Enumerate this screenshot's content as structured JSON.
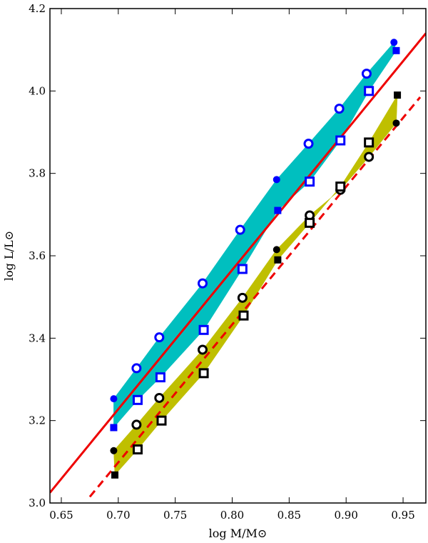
{
  "chart_data": {
    "type": "scatter",
    "xlabel": "log M/M⊙",
    "ylabel": "log L/L⊙",
    "xlim": [
      0.64,
      0.97
    ],
    "ylim": [
      3.0,
      4.2
    ],
    "xticks": [
      "0.65",
      "0.70",
      "0.75",
      "0.80",
      "0.85",
      "0.90",
      "0.95"
    ],
    "yticks": [
      "3.0",
      "3.2",
      "3.4",
      "3.6",
      "3.8",
      "4.0",
      "4.2"
    ],
    "grid": false,
    "colors": {
      "blue": "#0000ff",
      "black": "#000000",
      "cyan_band": "#00bfbf",
      "yellow_band": "#bfbf00",
      "red": "#ee0000"
    },
    "bands": [
      {
        "color": "cyan",
        "upper": [
          [
            0.696,
            3.253
          ],
          [
            0.716,
            3.327
          ],
          [
            0.736,
            3.402
          ],
          [
            0.774,
            3.533
          ],
          [
            0.807,
            3.663
          ],
          [
            0.839,
            3.785
          ],
          [
            0.867,
            3.872
          ],
          [
            0.894,
            3.957
          ],
          [
            0.918,
            4.042
          ],
          [
            0.942,
            4.118
          ]
        ],
        "lower": [
          [
            0.696,
            3.183
          ],
          [
            0.717,
            3.25
          ],
          [
            0.737,
            3.305
          ],
          [
            0.775,
            3.42
          ],
          [
            0.809,
            3.568
          ],
          [
            0.84,
            3.71
          ],
          [
            0.868,
            3.78
          ],
          [
            0.895,
            3.88
          ],
          [
            0.92,
            4.0
          ],
          [
            0.944,
            4.098
          ]
        ]
      },
      {
        "color": "yellow",
        "upper": [
          [
            0.696,
            3.127
          ],
          [
            0.716,
            3.19
          ],
          [
            0.736,
            3.255
          ],
          [
            0.774,
            3.372
          ],
          [
            0.809,
            3.498
          ],
          [
            0.839,
            3.615
          ],
          [
            0.868,
            3.698
          ],
          [
            0.895,
            3.76
          ],
          [
            0.92,
            3.84
          ],
          [
            0.944,
            3.922
          ]
        ],
        "lower": [
          [
            0.697,
            3.068
          ],
          [
            0.717,
            3.13
          ],
          [
            0.738,
            3.2
          ],
          [
            0.775,
            3.315
          ],
          [
            0.81,
            3.455
          ],
          [
            0.84,
            3.59
          ],
          [
            0.868,
            3.68
          ],
          [
            0.895,
            3.768
          ],
          [
            0.92,
            3.875
          ],
          [
            0.945,
            3.99
          ]
        ]
      }
    ],
    "series": [
      {
        "marker": "filled-circle",
        "color": "blue",
        "points": [
          [
            0.696,
            3.253
          ],
          [
            0.839,
            3.785
          ],
          [
            0.942,
            4.118
          ]
        ]
      },
      {
        "marker": "open-circle",
        "color": "blue",
        "points": [
          [
            0.716,
            3.327
          ],
          [
            0.736,
            3.402
          ],
          [
            0.774,
            3.533
          ],
          [
            0.807,
            3.663
          ],
          [
            0.867,
            3.872
          ],
          [
            0.894,
            3.957
          ],
          [
            0.918,
            4.042
          ]
        ]
      },
      {
        "marker": "filled-square",
        "color": "blue",
        "points": [
          [
            0.696,
            3.183
          ],
          [
            0.84,
            3.71
          ],
          [
            0.944,
            4.098
          ]
        ]
      },
      {
        "marker": "open-square",
        "color": "blue",
        "points": [
          [
            0.717,
            3.25
          ],
          [
            0.737,
            3.305
          ],
          [
            0.775,
            3.42
          ],
          [
            0.809,
            3.568
          ],
          [
            0.868,
            3.78
          ],
          [
            0.895,
            3.88
          ],
          [
            0.92,
            4.0
          ]
        ]
      },
      {
        "marker": "filled-circle",
        "color": "black",
        "points": [
          [
            0.696,
            3.127
          ],
          [
            0.839,
            3.615
          ],
          [
            0.944,
            3.922
          ]
        ]
      },
      {
        "marker": "open-circle",
        "color": "black",
        "points": [
          [
            0.716,
            3.19
          ],
          [
            0.736,
            3.255
          ],
          [
            0.774,
            3.372
          ],
          [
            0.809,
            3.498
          ],
          [
            0.868,
            3.698
          ],
          [
            0.895,
            3.76
          ],
          [
            0.92,
            3.84
          ]
        ]
      },
      {
        "marker": "filled-square",
        "color": "black",
        "points": [
          [
            0.697,
            3.068
          ],
          [
            0.84,
            3.59
          ],
          [
            0.945,
            3.99
          ]
        ]
      },
      {
        "marker": "open-square",
        "color": "black",
        "points": [
          [
            0.717,
            3.13
          ],
          [
            0.738,
            3.2
          ],
          [
            0.775,
            3.315
          ],
          [
            0.81,
            3.455
          ],
          [
            0.868,
            3.68
          ],
          [
            0.895,
            3.768
          ],
          [
            0.92,
            3.875
          ]
        ]
      }
    ],
    "lines": [
      {
        "style": "solid",
        "color": "red",
        "points": [
          [
            0.64,
            3.025
          ],
          [
            0.97,
            4.14
          ]
        ]
      },
      {
        "style": "dashed",
        "color": "red",
        "points": [
          [
            0.675,
            3.015
          ],
          [
            0.965,
            3.985
          ]
        ]
      }
    ]
  }
}
